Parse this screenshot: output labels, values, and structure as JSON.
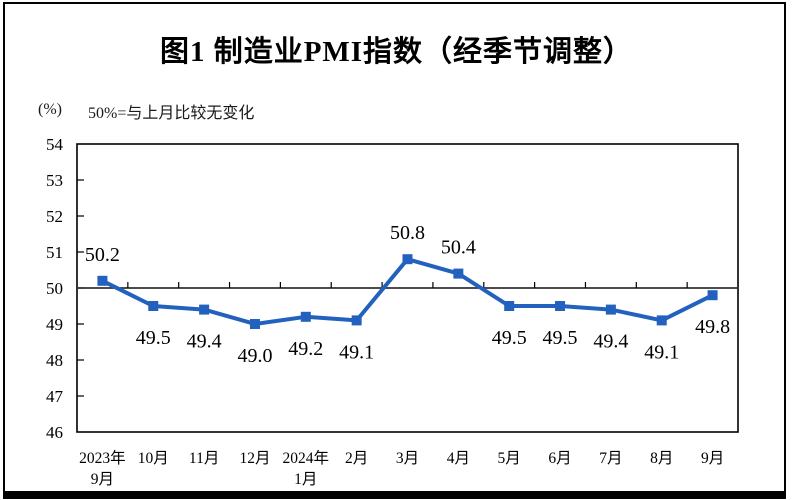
{
  "figure": {
    "title": "图1 制造业PMI指数（经季节调整）",
    "unit_label": "(%)",
    "baseline_note": "50%=与上月比较无变化"
  },
  "chart_data": {
    "type": "line",
    "title": "图1 制造业PMI指数（经季节调整）",
    "unit": "(%)",
    "annotation": "50%=与上月比较无变化",
    "categories": [
      [
        "2023年",
        "9月"
      ],
      [
        "10月"
      ],
      [
        "11月"
      ],
      [
        "12月"
      ],
      [
        "2024年",
        "1月"
      ],
      [
        "2月"
      ],
      [
        "3月"
      ],
      [
        "4月"
      ],
      [
        "5月"
      ],
      [
        "6月"
      ],
      [
        "7月"
      ],
      [
        "8月"
      ],
      [
        "9月"
      ]
    ],
    "values": [
      50.2,
      49.5,
      49.4,
      49.0,
      49.2,
      49.1,
      50.8,
      50.4,
      49.5,
      49.5,
      49.4,
      49.1,
      49.8
    ],
    "ylim": [
      46,
      54
    ],
    "ytick_step": 1,
    "baseline": 50,
    "grid": false,
    "legend": false,
    "line_color": "#2262BE",
    "marker_color": "#2262BE",
    "marker_shape": "square",
    "axis_color": "#000000",
    "label_color": "#000000"
  }
}
